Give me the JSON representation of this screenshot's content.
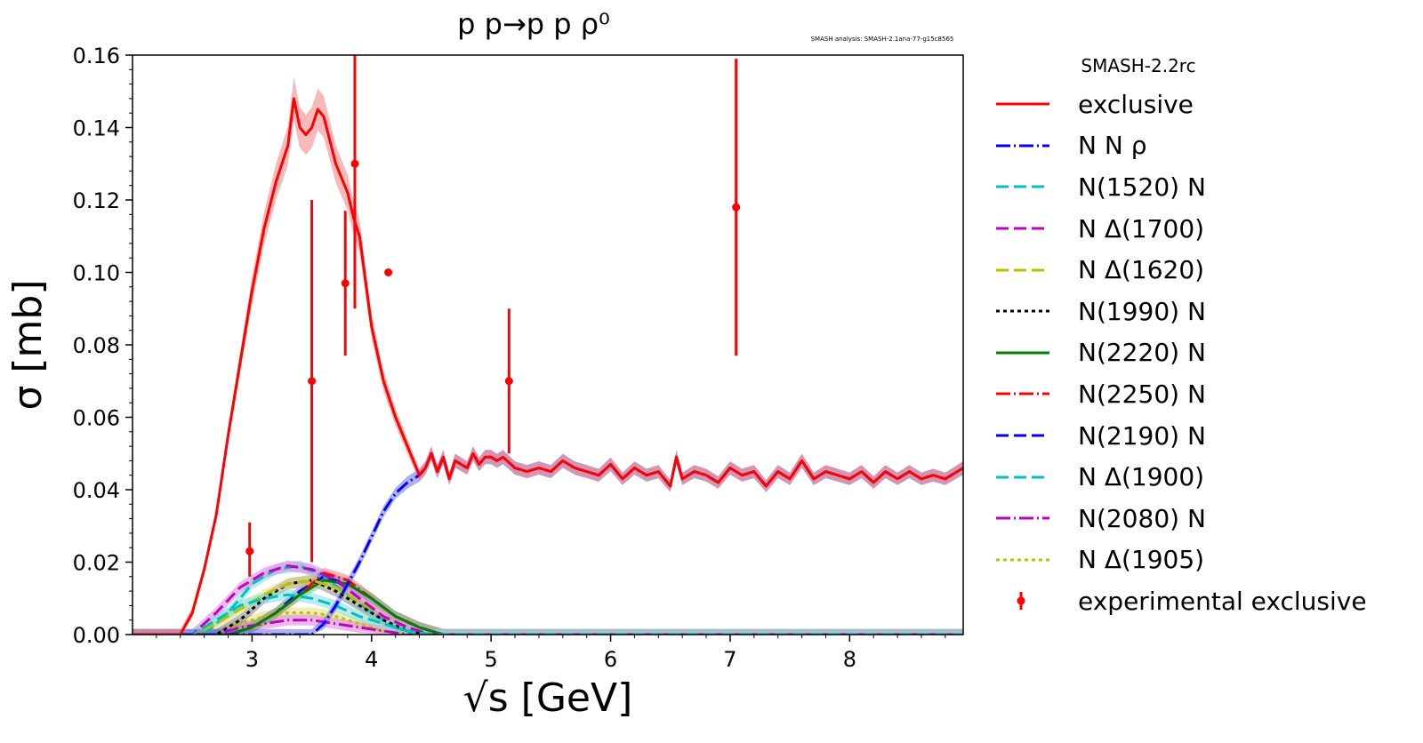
{
  "chart_data": {
    "type": "line",
    "title": "p p→p p ρ⁰",
    "watermark": "SMASH analysis: SMASH-2.1ana-77-g15c8565",
    "xlabel": "√s [GeV]",
    "ylabel": "σ [mb]",
    "xlim": [
      2.0,
      8.95
    ],
    "ylim": [
      0.0,
      0.16
    ],
    "x_ticks": [
      3,
      4,
      5,
      6,
      7,
      8
    ],
    "y_ticks": [
      0.0,
      0.02,
      0.04,
      0.06,
      0.08,
      0.1,
      0.12,
      0.14,
      0.16
    ],
    "y_tick_labels": [
      "0.00",
      "0.02",
      "0.04",
      "0.06",
      "0.08",
      "0.10",
      "0.12",
      "0.14",
      "0.16"
    ],
    "legend_title": "SMASH-2.2rc",
    "legend_position": "outside-right",
    "series": [
      {
        "name": "exclusive",
        "color": "#ff0000",
        "band": "#f08080",
        "style": "solid",
        "x": [
          2.0,
          2.4,
          2.5,
          2.6,
          2.7,
          2.8,
          2.9,
          3.0,
          3.1,
          3.2,
          3.3,
          3.35,
          3.4,
          3.45,
          3.5,
          3.55,
          3.6,
          3.7,
          3.8,
          3.85,
          3.9,
          4.0,
          4.1,
          4.2,
          4.3,
          4.4,
          4.45,
          4.5,
          4.55,
          4.6,
          4.65,
          4.7,
          4.75,
          4.8,
          4.85,
          4.9,
          4.95,
          5.0,
          5.05,
          5.1,
          5.2,
          5.3,
          5.4,
          5.5,
          5.6,
          5.7,
          5.8,
          5.9,
          6.0,
          6.1,
          6.2,
          6.3,
          6.4,
          6.5,
          6.55,
          6.6,
          6.7,
          6.8,
          6.9,
          7.0,
          7.1,
          7.2,
          7.25,
          7.3,
          7.4,
          7.5,
          7.6,
          7.7,
          7.8,
          7.9,
          8.0,
          8.1,
          8.2,
          8.3,
          8.4,
          8.5,
          8.6,
          8.7,
          8.8,
          8.9,
          8.95
        ],
        "y": [
          0.0,
          0.0,
          0.006,
          0.018,
          0.033,
          0.055,
          0.075,
          0.095,
          0.112,
          0.125,
          0.135,
          0.148,
          0.14,
          0.138,
          0.14,
          0.145,
          0.143,
          0.13,
          0.122,
          0.115,
          0.11,
          0.085,
          0.07,
          0.06,
          0.052,
          0.044,
          0.046,
          0.05,
          0.045,
          0.049,
          0.043,
          0.048,
          0.047,
          0.046,
          0.05,
          0.047,
          0.049,
          0.049,
          0.048,
          0.049,
          0.046,
          0.045,
          0.046,
          0.045,
          0.048,
          0.046,
          0.045,
          0.044,
          0.047,
          0.043,
          0.046,
          0.044,
          0.045,
          0.041,
          0.049,
          0.043,
          0.045,
          0.044,
          0.042,
          0.046,
          0.044,
          0.045,
          0.043,
          0.041,
          0.045,
          0.043,
          0.048,
          0.043,
          0.045,
          0.044,
          0.043,
          0.045,
          0.042,
          0.045,
          0.043,
          0.045,
          0.043,
          0.044,
          0.043,
          0.045,
          0.046
        ]
      },
      {
        "name": "N N ρ",
        "color": "#0000ff",
        "band": "#6f6fe0",
        "style": "dashdot",
        "x": [
          2.0,
          3.5,
          3.6,
          3.7,
          3.8,
          3.9,
          4.0,
          4.1,
          4.2,
          4.3,
          4.4,
          4.45,
          4.5,
          4.55,
          4.6,
          4.65,
          4.7,
          4.75,
          4.8,
          4.85,
          4.9,
          4.95,
          5.0,
          5.05,
          5.1,
          5.2,
          5.3,
          5.4,
          5.5,
          5.6,
          5.7,
          5.8,
          5.9,
          6.0,
          6.1,
          6.2,
          6.3,
          6.4,
          6.5,
          6.55,
          6.6,
          6.7,
          6.8,
          6.9,
          7.0,
          7.1,
          7.2,
          7.25,
          7.3,
          7.4,
          7.5,
          7.6,
          7.7,
          7.8,
          7.9,
          8.0,
          8.1,
          8.2,
          8.3,
          8.4,
          8.5,
          8.6,
          8.7,
          8.8,
          8.9,
          8.95
        ],
        "y": [
          0.0,
          0.0,
          0.003,
          0.008,
          0.014,
          0.02,
          0.027,
          0.034,
          0.039,
          0.042,
          0.044,
          0.046,
          0.05,
          0.045,
          0.049,
          0.043,
          0.048,
          0.047,
          0.046,
          0.05,
          0.047,
          0.049,
          0.049,
          0.048,
          0.049,
          0.046,
          0.045,
          0.046,
          0.045,
          0.048,
          0.046,
          0.045,
          0.044,
          0.047,
          0.043,
          0.046,
          0.044,
          0.045,
          0.041,
          0.049,
          0.043,
          0.045,
          0.044,
          0.042,
          0.046,
          0.044,
          0.045,
          0.043,
          0.041,
          0.045,
          0.043,
          0.048,
          0.043,
          0.045,
          0.044,
          0.043,
          0.045,
          0.042,
          0.045,
          0.043,
          0.045,
          0.043,
          0.044,
          0.043,
          0.045,
          0.046
        ]
      },
      {
        "name": "N(1520) N",
        "color": "#00bfbf",
        "band": "#80dfdf",
        "style": "dashed",
        "x": [
          2.0,
          2.5,
          2.7,
          2.9,
          3.1,
          3.3,
          3.5,
          3.7,
          3.9,
          4.1,
          4.3,
          4.5,
          8.95
        ],
        "y": [
          0,
          0,
          0.004,
          0.008,
          0.01,
          0.011,
          0.01,
          0.008,
          0.005,
          0.003,
          0.001,
          0,
          0
        ]
      },
      {
        "name": "N Δ(1700)",
        "color": "#bf00bf",
        "band": "#df80df",
        "style": "dashed",
        "x": [
          2.0,
          2.5,
          2.7,
          2.9,
          3.1,
          3.3,
          3.5,
          3.7,
          3.9,
          4.1,
          4.3,
          4.5,
          8.95
        ],
        "y": [
          0,
          0,
          0.006,
          0.013,
          0.017,
          0.019,
          0.018,
          0.015,
          0.01,
          0.005,
          0.002,
          0,
          0
        ]
      },
      {
        "name": "N Δ(1620)",
        "color": "#bfbf00",
        "band": "#dfdf80",
        "style": "dashed",
        "x": [
          2.0,
          2.5,
          2.7,
          2.9,
          3.1,
          3.3,
          3.5,
          3.7,
          3.9,
          4.1,
          4.3,
          4.5,
          8.95
        ],
        "y": [
          0,
          0,
          0.003,
          0.007,
          0.011,
          0.014,
          0.015,
          0.013,
          0.009,
          0.005,
          0.002,
          0,
          0
        ]
      },
      {
        "name": "N(1990) N",
        "color": "#000000",
        "band": "#808080",
        "style": "dotted",
        "x": [
          2.0,
          2.7,
          2.9,
          3.1,
          3.3,
          3.5,
          3.7,
          3.9,
          4.1,
          4.3,
          4.5,
          8.95
        ],
        "y": [
          0,
          0,
          0.004,
          0.01,
          0.014,
          0.015,
          0.012,
          0.008,
          0.004,
          0.001,
          0,
          0
        ]
      },
      {
        "name": "N(2220) N",
        "color": "#008000",
        "band": "#80c080",
        "style": "solid",
        "x": [
          2.0,
          2.8,
          3.0,
          3.2,
          3.4,
          3.6,
          3.8,
          4.0,
          4.2,
          4.4,
          4.6,
          8.95
        ],
        "y": [
          0,
          0,
          0.002,
          0.006,
          0.011,
          0.015,
          0.014,
          0.01,
          0.005,
          0.002,
          0,
          0
        ]
      },
      {
        "name": "N(2250) N",
        "color": "#ff0000",
        "band": "#f08080",
        "style": "dashdot",
        "x": [
          2.0,
          2.8,
          3.0,
          3.2,
          3.4,
          3.6,
          3.8,
          4.0,
          4.2,
          4.4,
          4.6,
          8.95
        ],
        "y": [
          0,
          0,
          0.002,
          0.006,
          0.011,
          0.017,
          0.015,
          0.01,
          0.005,
          0.002,
          0,
          0
        ]
      },
      {
        "name": "N(2190) N",
        "color": "#0000ff",
        "band": "#8080ff",
        "style": "dashed",
        "x": [
          2.0,
          2.8,
          3.0,
          3.2,
          3.4,
          3.6,
          3.8,
          4.0,
          4.2,
          4.4,
          4.6,
          8.95
        ],
        "y": [
          0,
          0,
          0.002,
          0.006,
          0.012,
          0.016,
          0.014,
          0.01,
          0.005,
          0.002,
          0,
          0
        ]
      },
      {
        "name": "N Δ(1900)",
        "color": "#00bfbf",
        "band": "#80dfdf",
        "style": "dashed",
        "x": [
          2.0,
          2.6,
          2.8,
          3.0,
          3.2,
          3.4,
          3.6,
          3.8,
          4.0,
          4.2,
          4.4,
          8.95
        ],
        "y": [
          0,
          0,
          0.006,
          0.014,
          0.018,
          0.019,
          0.016,
          0.011,
          0.006,
          0.002,
          0,
          0
        ]
      },
      {
        "name": "N(2080) N",
        "color": "#bf00bf",
        "band": "#df80df",
        "style": "dashdot",
        "x": [
          2.0,
          2.7,
          2.9,
          3.1,
          3.3,
          3.5,
          3.7,
          3.9,
          4.1,
          4.3,
          8.95
        ],
        "y": [
          0,
          0,
          0.002,
          0.003,
          0.004,
          0.004,
          0.003,
          0.002,
          0.001,
          0,
          0
        ]
      },
      {
        "name": "N Δ(1905)",
        "color": "#bfbf00",
        "band": "#dfdf80",
        "style": "dotted",
        "x": [
          2.0,
          2.7,
          2.9,
          3.1,
          3.3,
          3.5,
          3.7,
          3.9,
          4.1,
          4.3,
          8.95
        ],
        "y": [
          0,
          0,
          0.003,
          0.005,
          0.006,
          0.006,
          0.005,
          0.003,
          0.001,
          0,
          0
        ]
      }
    ],
    "experimental": {
      "name": "experimental exclusive",
      "color": "#ff0000",
      "points": [
        {
          "x": 2.98,
          "y": 0.023,
          "ylow": 0.016,
          "yhigh": 0.031
        },
        {
          "x": 3.5,
          "y": 0.07,
          "ylow": 0.02,
          "yhigh": 0.12
        },
        {
          "x": 3.78,
          "y": 0.097,
          "ylow": 0.077,
          "yhigh": 0.117
        },
        {
          "x": 3.86,
          "y": 0.13,
          "ylow": 0.09,
          "yhigh": 0.17
        },
        {
          "x": 4.14,
          "y": 0.1,
          "ylow": 0.1,
          "yhigh": 0.1
        },
        {
          "x": 5.15,
          "y": 0.07,
          "ylow": 0.05,
          "yhigh": 0.09
        },
        {
          "x": 7.05,
          "y": 0.118,
          "ylow": 0.077,
          "yhigh": 0.159
        }
      ]
    }
  }
}
